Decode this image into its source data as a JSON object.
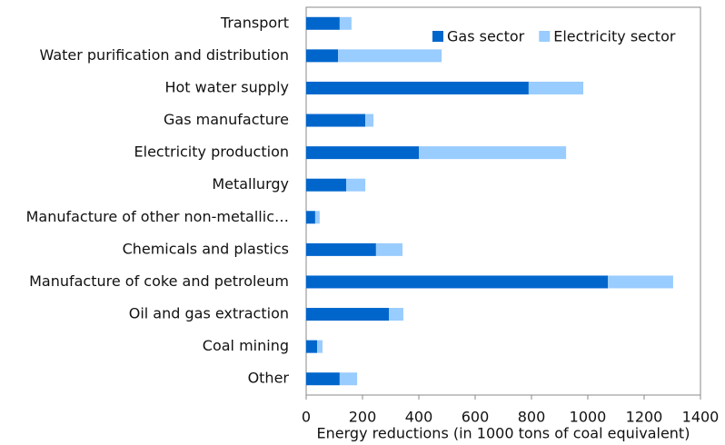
{
  "chart_data": {
    "type": "stacked_barh",
    "xlabel": "Energy reductions (in 1000 tons of coal equivalent)",
    "categories": [
      "Transport",
      "Water purification and distribution",
      "Hot water supply",
      "Gas manufacture",
      "Electricity production",
      "Metallurgy",
      "Manufacture of other non-metallic…",
      "Chemicals and plastics",
      "Manufacture of coke and petroleum",
      "Oil and gas extraction",
      "Coal mining",
      "Other"
    ],
    "series": [
      {
        "name": "Gas sector",
        "color": "#0066cc",
        "values": [
          119,
          113,
          790,
          210,
          400,
          142,
          32,
          248,
          1071,
          294,
          39,
          119
        ]
      },
      {
        "name": "Electricity sector",
        "color": "#99ccff",
        "values": [
          42,
          368,
          194,
          29,
          523,
          68,
          16,
          94,
          232,
          51,
          19,
          62
        ]
      }
    ],
    "xlim": [
      0,
      1400
    ],
    "xticks": [
      0,
      200,
      400,
      600,
      800,
      1000,
      1200,
      1400
    ],
    "legend": "top-right",
    "grid": false
  }
}
